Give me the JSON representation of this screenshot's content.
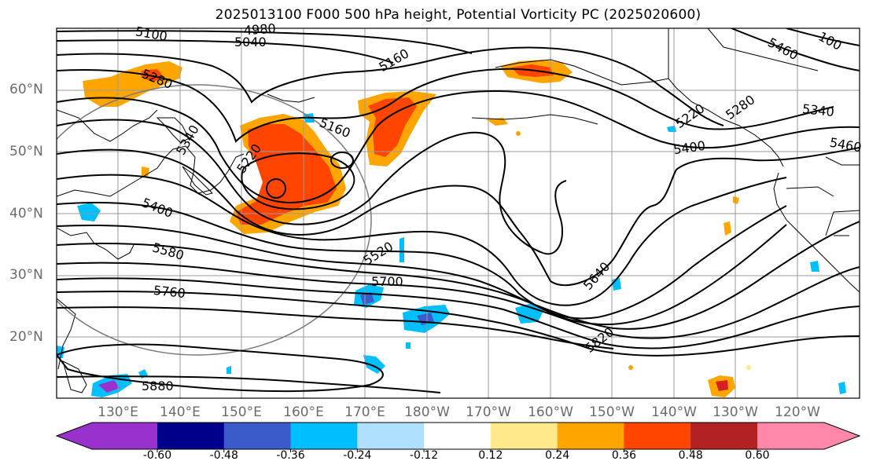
{
  "title": "2025013100 F000 500 hPa height, Potential Vorticity PC (2025020600)",
  "lat_labels": [
    "60°N",
    "50°N",
    "40°N",
    "30°N",
    "20°N"
  ],
  "lon_labels": [
    "130°E",
    "140°E",
    "150°E",
    "160°E",
    "170°E",
    "180°W",
    "170°W",
    "160°W",
    "150°W",
    "140°W",
    "130°W",
    "120°W"
  ],
  "contour_labels": [
    "4980",
    "5040",
    "5100",
    "5160",
    "5220",
    "5280",
    "5340",
    "5400",
    "5460",
    "5520",
    "5580",
    "5640",
    "5700",
    "5760",
    "5820",
    "5880",
    "5160",
    "5220",
    "5280",
    "5340",
    "5400",
    "5460",
    "100"
  ],
  "colorbar": {
    "ticks": [
      "-0.60",
      "-0.48",
      "-0.36",
      "-0.24",
      "-0.12",
      "0.12",
      "0.24",
      "0.36",
      "0.48",
      "0.60"
    ],
    "colors": [
      "#9932CC",
      "#00008B",
      "#3A5BC9",
      "#00BFFF",
      "#B0E0FF",
      "#FFFFFF",
      "#FFE98A",
      "#FFA500",
      "#FF4500",
      "#B22222",
      "#FF88AA"
    ]
  },
  "pv_colors": {
    "light_pos": "#FFE98A",
    "mid_pos": "#FFA500",
    "high_pos": "#FF4500",
    "very_high": "#D42020",
    "neg1": "#B0E0FF",
    "neg2": "#00BFFF",
    "neg3": "#3A5BC9",
    "neg4": "#9932CC"
  }
}
